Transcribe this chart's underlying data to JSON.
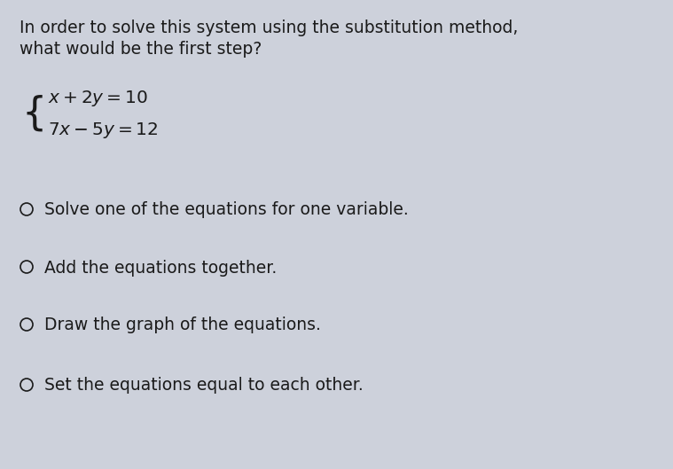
{
  "background_color": "#cdd1db",
  "question_line1": "In order to solve this system using the substitution method,",
  "question_line2": "what would be the first step?",
  "options": [
    "Solve one of the equations for one variable.",
    "Add the equations together.",
    "Draw the graph of the equations.",
    "Set the equations equal to each other."
  ],
  "text_color": "#1a1a1a",
  "question_fontsize": 13.5,
  "eq_fontsize": 14.5,
  "option_fontsize": 13.5,
  "fig_width": 7.59,
  "fig_height": 5.29,
  "dpi": 100
}
